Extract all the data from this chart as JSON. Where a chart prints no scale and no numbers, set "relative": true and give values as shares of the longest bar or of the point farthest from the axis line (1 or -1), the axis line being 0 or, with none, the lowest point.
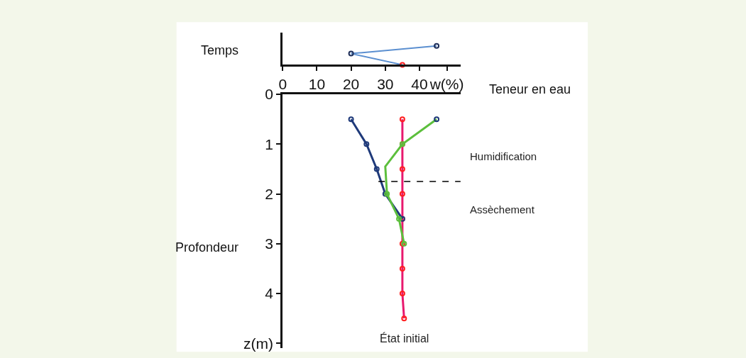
{
  "chart_data": [
    {
      "type": "line",
      "relative": true,
      "ylabel": "Temps",
      "xlabel": "Teneur en eau",
      "xlim": [
        0,
        52
      ],
      "xticks": [
        0,
        10,
        20,
        30,
        40,
        {
          "value": 48,
          "label": "w(%)"
        }
      ],
      "tick_labels": "x",
      "marker": "circle",
      "series": [
        {
          "x": [
            35,
            20,
            45
          ],
          "values": [
            0,
            0.59,
            1
          ],
          "color": "#5b8fd0",
          "colors": [
            "#ff2020",
            "#1f2f5a",
            "#1f2f5a"
          ]
        }
      ]
    },
    {
      "type": "line",
      "ylabel": "Profondeur",
      "xlim": [
        0,
        52
      ],
      "ylim": [
        5.1,
        0
      ],
      "yticks": [
        0,
        1,
        2,
        3,
        4,
        {
          "value": 5,
          "label": "z(m)"
        }
      ],
      "tick_labels": "y",
      "marker": "circle",
      "annotations": [
        "Humidification",
        "Assèchement"
      ],
      "ref_lines": [
        {
          "axis": "y",
          "value": 1.75,
          "color": "#000000",
          "line_style": "dashed"
        }
      ],
      "series": [
        {
          "name": "État initial",
          "x": [
            35,
            35,
            35,
            35,
            35,
            35,
            35,
            35,
            35.5
          ],
          "values": [
            0.5,
            1,
            1.5,
            2,
            2.5,
            3,
            3.5,
            4,
            4.5
          ],
          "color": "#e8196e",
          "colors": [
            "#ff2020",
            "#ff2020",
            "#ff2020",
            "#ff2020",
            "#ff2020",
            "#ff2020",
            "#ff2020",
            "#ff2020",
            "#ff2020"
          ]
        },
        {
          "x": [
            20,
            24.5,
            27.5,
            30,
            35
          ],
          "values": [
            0.5,
            1,
            1.5,
            2,
            2.5
          ],
          "color": "#1f3a7a",
          "colors": [
            "#1f3a7a",
            "#1f3a7a",
            "#1f3a7a",
            "#1f3a7a",
            "#1f3a7a"
          ]
        },
        {
          "x": [
            45,
            35,
            30,
            30.5,
            34,
            35.5
          ],
          "values": [
            0.5,
            1,
            1.45,
            2,
            2.5,
            3
          ],
          "color": "#5cbf3c",
          "colors": [
            "#1f3a7a",
            "#5cbf3c",
            null,
            "#5cbf3c",
            "#5cbf3c",
            "#5cbf3c"
          ]
        }
      ]
    }
  ]
}
